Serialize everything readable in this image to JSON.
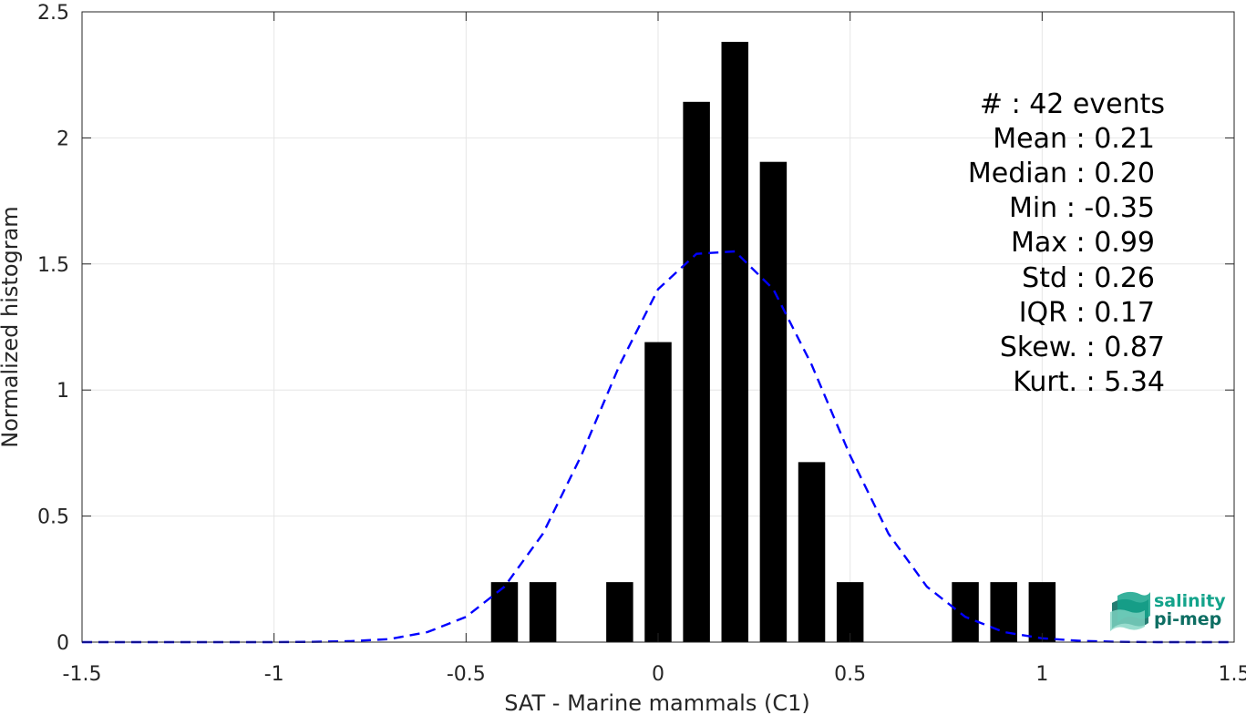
{
  "chart_data": {
    "type": "bar",
    "xlabel": "SAT - Marine mammals (C1)",
    "ylabel": "Normalized histogram",
    "xlim": [
      -1.5,
      1.5
    ],
    "ylim": [
      0,
      2.5
    ],
    "xticks": [
      -1.5,
      -1,
      -0.5,
      0,
      0.5,
      1,
      1.5
    ],
    "xtick_labels": [
      "-1.5",
      "-1",
      "-0.5",
      "0",
      "0.5",
      "1",
      "1.5"
    ],
    "yticks": [
      0,
      0.5,
      1,
      1.5,
      2,
      2.5
    ],
    "ytick_labels": [
      "0",
      "0.5",
      "1",
      "1.5",
      "2",
      "2.5"
    ],
    "grid": true,
    "bar_width": 0.07,
    "bars": [
      {
        "x": -0.4,
        "value": 0.238
      },
      {
        "x": -0.3,
        "value": 0.238
      },
      {
        "x": -0.1,
        "value": 0.238
      },
      {
        "x": 0.0,
        "value": 1.19
      },
      {
        "x": 0.1,
        "value": 2.143
      },
      {
        "x": 0.2,
        "value": 2.381
      },
      {
        "x": 0.3,
        "value": 1.905
      },
      {
        "x": 0.4,
        "value": 0.714
      },
      {
        "x": 0.5,
        "value": 0.238
      },
      {
        "x": 0.8,
        "value": 0.238
      },
      {
        "x": 0.9,
        "value": 0.238
      },
      {
        "x": 1.0,
        "value": 0.238
      }
    ],
    "fit_curve": {
      "style": "dashed",
      "color": "#0000ff",
      "x": [
        -1.5,
        -1.4,
        -1.3,
        -1.2,
        -1.1,
        -1.0,
        -0.9,
        -0.8,
        -0.7,
        -0.6,
        -0.5,
        -0.4,
        -0.3,
        -0.2,
        -0.1,
        0.0,
        0.1,
        0.2,
        0.3,
        0.4,
        0.5,
        0.6,
        0.7,
        0.8,
        0.9,
        1.0,
        1.1,
        1.2,
        1.3,
        1.4,
        1.5
      ],
      "y": [
        0.0,
        0.0,
        0.0,
        0.0,
        0.0,
        0.0,
        0.001,
        0.004,
        0.012,
        0.04,
        0.1,
        0.22,
        0.43,
        0.74,
        1.1,
        1.4,
        1.54,
        1.55,
        1.4,
        1.1,
        0.74,
        0.43,
        0.22,
        0.1,
        0.04,
        0.015,
        0.005,
        0.001,
        0.0,
        0.0,
        0.0
      ]
    },
    "colors": {
      "bars": "#000000",
      "curve": "#0000ff",
      "grid": "#e6e6e6",
      "axis": "#262626"
    }
  },
  "stats": {
    "lines": [
      "#  : 42 events",
      "Mean : 0.21",
      "Median : 0.20",
      "Min : -0.35",
      "Max : 0.99",
      "Std : 0.26",
      "IQR : 0.17",
      "Skew. : 0.87",
      "Kurt. : 5.34"
    ]
  },
  "logo": {
    "line1": "salinity",
    "line2": "pi-mep",
    "colors": [
      "#14a38b",
      "#0e6e63"
    ]
  }
}
